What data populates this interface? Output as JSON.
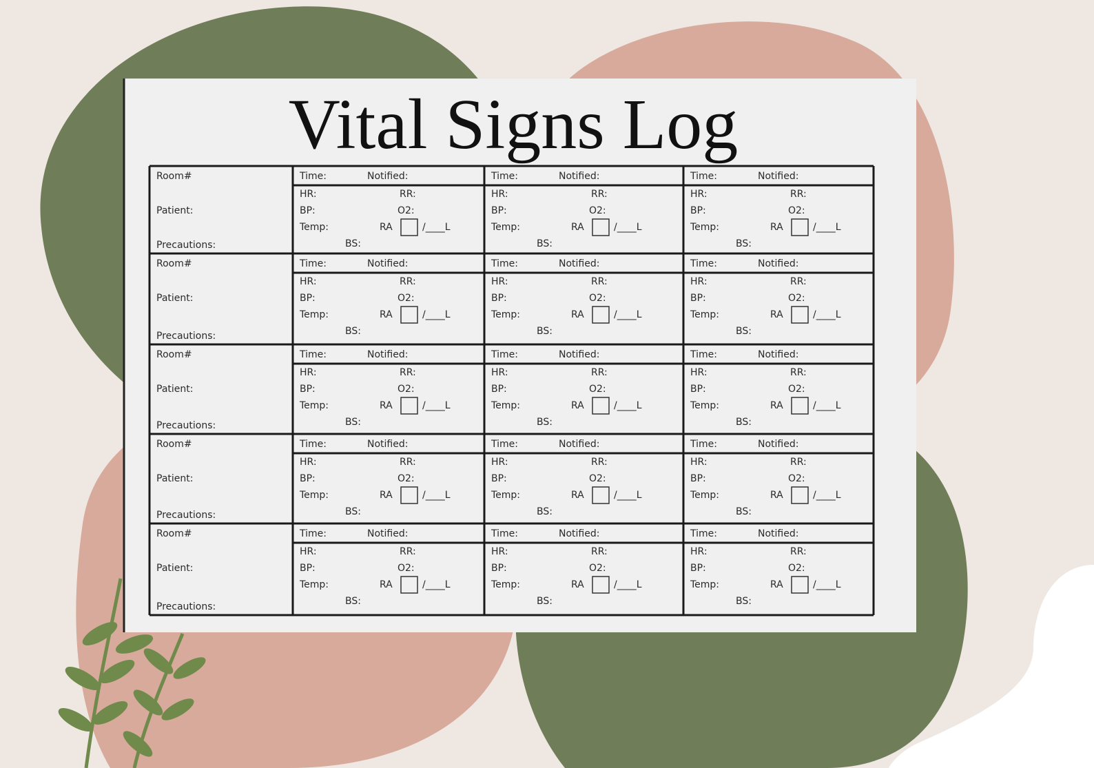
{
  "title": "Vital Signs Log",
  "rows": [
    {
      "room": "Room#",
      "patient": "Patient:",
      "precautions": "Precautions:",
      "checks": [
        {
          "time": "Time:",
          "notified": "Notified:",
          "hr": "HR:",
          "rr": "RR:",
          "bp": "BP:",
          "o2": "O2:",
          "temp": "Temp:",
          "ra": "RA",
          "liters": "/____L",
          "bs": "BS:"
        },
        {
          "time": "Time:",
          "notified": "Notified:",
          "hr": "HR:",
          "rr": "RR:",
          "bp": "BP:",
          "o2": "O2:",
          "temp": "Temp:",
          "ra": "RA",
          "liters": "/____L",
          "bs": "BS:"
        },
        {
          "time": "Time:",
          "notified": "Notified:",
          "hr": "HR:",
          "rr": "RR:",
          "bp": "BP:",
          "o2": "O2:",
          "temp": "Temp:",
          "ra": "RA",
          "liters": "/____L",
          "bs": "BS:"
        }
      ]
    },
    {
      "room": "Room#",
      "patient": "Patient:",
      "precautions": "Precautions:",
      "checks": [
        {
          "time": "Time:",
          "notified": "Notified:",
          "hr": "HR:",
          "rr": "RR:",
          "bp": "BP:",
          "o2": "O2:",
          "temp": "Temp:",
          "ra": "RA",
          "liters": "/____L",
          "bs": "BS:"
        },
        {
          "time": "Time:",
          "notified": "Notified:",
          "hr": "HR:",
          "rr": "RR:",
          "bp": "BP:",
          "o2": "O2:",
          "temp": "Temp:",
          "ra": "RA",
          "liters": "/____L",
          "bs": "BS:"
        },
        {
          "time": "Time:",
          "notified": "Notified:",
          "hr": "HR:",
          "rr": "RR:",
          "bp": "BP:",
          "o2": "O2:",
          "temp": "Temp:",
          "ra": "RA",
          "liters": "/____L",
          "bs": "BS:"
        }
      ]
    },
    {
      "room": "Room#",
      "patient": "Patient:",
      "precautions": "Precautions:",
      "checks": [
        {
          "time": "Time:",
          "notified": "Notified:",
          "hr": "HR:",
          "rr": "RR:",
          "bp": "BP:",
          "o2": "O2:",
          "temp": "Temp:",
          "ra": "RA",
          "liters": "/____L",
          "bs": "BS:"
        },
        {
          "time": "Time:",
          "notified": "Notified:",
          "hr": "HR:",
          "rr": "RR:",
          "bp": "BP:",
          "o2": "O2:",
          "temp": "Temp:",
          "ra": "RA",
          "liters": "/____L",
          "bs": "BS:"
        },
        {
          "time": "Time:",
          "notified": "Notified:",
          "hr": "HR:",
          "rr": "RR:",
          "bp": "BP:",
          "o2": "O2:",
          "temp": "Temp:",
          "ra": "RA",
          "liters": "/____L",
          "bs": "BS:"
        }
      ]
    },
    {
      "room": "Room#",
      "patient": "Patient:",
      "precautions": "Precautions:",
      "checks": [
        {
          "time": "Time:",
          "notified": "Notified:",
          "hr": "HR:",
          "rr": "RR:",
          "bp": "BP:",
          "o2": "O2:",
          "temp": "Temp:",
          "ra": "RA",
          "liters": "/____L",
          "bs": "BS:"
        },
        {
          "time": "Time:",
          "notified": "Notified:",
          "hr": "HR:",
          "rr": "RR:",
          "bp": "BP:",
          "o2": "O2:",
          "temp": "Temp:",
          "ra": "RA",
          "liters": "/____L",
          "bs": "BS:"
        },
        {
          "time": "Time:",
          "notified": "Notified:",
          "hr": "HR:",
          "rr": "RR:",
          "bp": "BP:",
          "o2": "O2:",
          "temp": "Temp:",
          "ra": "RA",
          "liters": "/____L",
          "bs": "BS:"
        }
      ]
    },
    {
      "room": "Room#",
      "patient": "Patient:",
      "precautions": "Precautions:",
      "checks": [
        {
          "time": "Time:",
          "notified": "Notified:",
          "hr": "HR:",
          "rr": "RR:",
          "bp": "BP:",
          "o2": "O2:",
          "temp": "Temp:",
          "ra": "RA",
          "liters": "/____L",
          "bs": "BS:"
        },
        {
          "time": "Time:",
          "notified": "Notified:",
          "hr": "HR:",
          "rr": "RR:",
          "bp": "BP:",
          "o2": "O2:",
          "temp": "Temp:",
          "ra": "RA",
          "liters": "/____L",
          "bs": "BS:"
        },
        {
          "time": "Time:",
          "notified": "Notified:",
          "hr": "HR:",
          "rr": "RR:",
          "bp": "BP:",
          "o2": "O2:",
          "temp": "Temp:",
          "ra": "RA",
          "liters": "/____L",
          "bs": "BS:"
        }
      ]
    }
  ]
}
